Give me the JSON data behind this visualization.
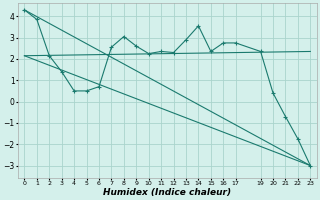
{
  "title": "",
  "xlabel": "Humidex (Indice chaleur)",
  "bg_color": "#d4f0eb",
  "grid_color": "#aad4cc",
  "line_color": "#1a7a6e",
  "xlim": [
    -0.5,
    23.5
  ],
  "ylim": [
    -3.6,
    4.6
  ],
  "yticks": [
    -3,
    -2,
    -1,
    0,
    1,
    2,
    3,
    4
  ],
  "xticks": [
    0,
    1,
    2,
    3,
    4,
    5,
    6,
    7,
    8,
    9,
    10,
    11,
    12,
    13,
    14,
    15,
    16,
    17,
    19,
    20,
    21,
    22,
    23
  ],
  "line1_x": [
    0,
    1,
    2,
    3,
    4,
    5,
    6,
    7,
    8,
    9,
    10,
    11,
    12,
    13,
    14,
    15,
    16,
    17,
    19,
    20,
    21,
    22,
    23
  ],
  "line1_y": [
    4.3,
    3.85,
    2.15,
    1.4,
    0.5,
    0.5,
    0.7,
    2.55,
    3.05,
    2.6,
    2.25,
    2.35,
    2.3,
    2.9,
    3.55,
    2.35,
    2.75,
    2.75,
    2.35,
    0.4,
    -0.7,
    -1.75,
    -3.0
  ],
  "line2_x": [
    0,
    23
  ],
  "line2_y": [
    4.3,
    -3.0
  ],
  "line3_x": [
    0,
    23
  ],
  "line3_y": [
    2.15,
    2.35
  ],
  "line4_x": [
    0,
    23
  ],
  "line4_y": [
    2.15,
    -3.0
  ]
}
